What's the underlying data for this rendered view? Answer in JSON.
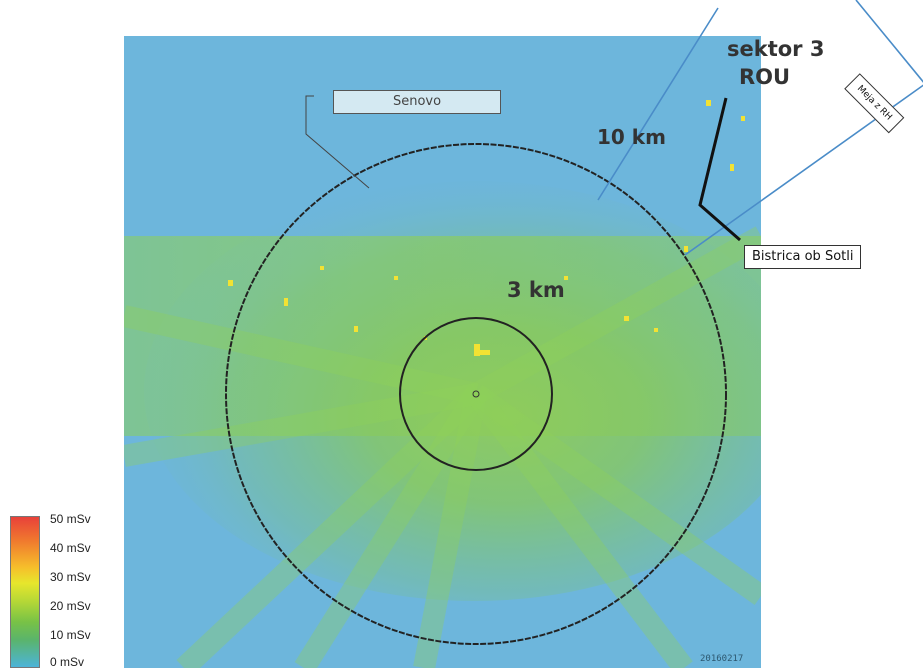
{
  "map": {
    "place_labels": {
      "senovo": "Senovo",
      "bistrica": "Bistrica ob Sotli",
      "border": "Meja z RH"
    },
    "sector": {
      "line1": "sektor 3",
      "line2": "ROU"
    },
    "rings": {
      "outer": "10 km",
      "inner": "3 km"
    },
    "date_stamp": "20160217"
  },
  "legend": {
    "ticks": [
      "50 mSv",
      "40 mSv",
      "30 mSv",
      "20 mSv",
      "10 mSv",
      "0 mSv"
    ],
    "colors": {
      "top": "#e8413a",
      "orange": "#f07a2e",
      "yellow": "#e7e62c",
      "green": "#78c246",
      "bottom": "#4db4d8"
    }
  }
}
